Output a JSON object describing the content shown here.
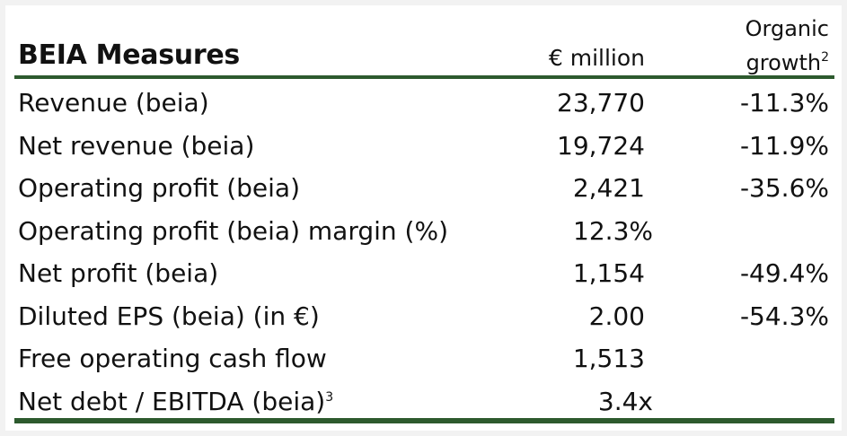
{
  "header": {
    "title": "BEIA Measures",
    "unit": "€ million",
    "growth_line1": "Organic",
    "growth_line2": "growth",
    "growth_sup": "2"
  },
  "rows": [
    {
      "label": "Revenue (beia)",
      "value": "23,770",
      "growth": "-11.3%"
    },
    {
      "label": "Net revenue (beia)",
      "value": "19,724",
      "growth": "-11.9%"
    },
    {
      "label": "Operating profit (beia)",
      "value": "2,421",
      "growth": "-35.6%"
    },
    {
      "label": "Operating profit (beia) margin (%)",
      "value": "12.3%",
      "growth": ""
    },
    {
      "label": "Net profit (beia)",
      "value": "1,154",
      "growth": "-49.4%"
    },
    {
      "label": "Diluted EPS (beia) (in €)",
      "value": "2.00",
      "growth": "-54.3%"
    },
    {
      "label": "Free operating cash flow",
      "value": "1,513",
      "growth": ""
    },
    {
      "label": "Net debt / EBITDA (beia)",
      "label_sup": "3",
      "value": "3.4x",
      "growth": ""
    }
  ],
  "colors": {
    "accent": "#2d5a2e"
  }
}
